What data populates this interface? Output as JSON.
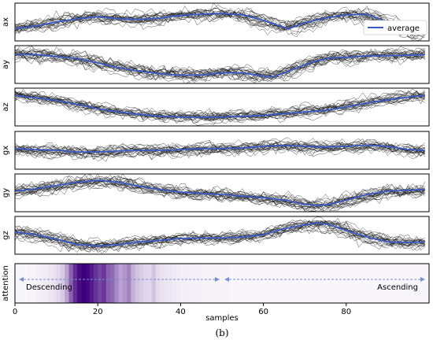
{
  "chart_data": {
    "type": "line",
    "panels": [
      {
        "ylabel": "ax",
        "average": [
          [
            0,
            0.3
          ],
          [
            5,
            0.38
          ],
          [
            10,
            0.5
          ],
          [
            15,
            0.6
          ],
          [
            20,
            0.66
          ],
          [
            25,
            0.6
          ],
          [
            30,
            0.58
          ],
          [
            35,
            0.62
          ],
          [
            40,
            0.7
          ],
          [
            45,
            0.74
          ],
          [
            50,
            0.76
          ],
          [
            55,
            0.72
          ],
          [
            60,
            0.55
          ],
          [
            63,
            0.42
          ],
          [
            66,
            0.3
          ],
          [
            70,
            0.48
          ],
          [
            75,
            0.62
          ],
          [
            80,
            0.72
          ],
          [
            85,
            0.73
          ],
          [
            88,
            0.6
          ],
          [
            92,
            0.35
          ],
          [
            96,
            0.2
          ],
          [
            99,
            0.18
          ]
        ]
      },
      {
        "ylabel": "ay",
        "average": [
          [
            0,
            0.8
          ],
          [
            5,
            0.8
          ],
          [
            10,
            0.74
          ],
          [
            15,
            0.68
          ],
          [
            20,
            0.55
          ],
          [
            25,
            0.4
          ],
          [
            30,
            0.3
          ],
          [
            35,
            0.22
          ],
          [
            40,
            0.18
          ],
          [
            45,
            0.18
          ],
          [
            50,
            0.25
          ],
          [
            55,
            0.25
          ],
          [
            60,
            0.15
          ],
          [
            62,
            0.12
          ],
          [
            64,
            0.2
          ],
          [
            68,
            0.4
          ],
          [
            72,
            0.58
          ],
          [
            76,
            0.7
          ],
          [
            80,
            0.72
          ],
          [
            85,
            0.76
          ],
          [
            90,
            0.77
          ],
          [
            95,
            0.78
          ],
          [
            99,
            0.8
          ]
        ]
      },
      {
        "ylabel": "az",
        "average": [
          [
            0,
            0.85
          ],
          [
            5,
            0.78
          ],
          [
            10,
            0.7
          ],
          [
            15,
            0.58
          ],
          [
            20,
            0.45
          ],
          [
            25,
            0.35
          ],
          [
            30,
            0.28
          ],
          [
            35,
            0.22
          ],
          [
            40,
            0.2
          ],
          [
            45,
            0.19
          ],
          [
            50,
            0.2
          ],
          [
            55,
            0.22
          ],
          [
            60,
            0.25
          ],
          [
            65,
            0.3
          ],
          [
            70,
            0.35
          ],
          [
            75,
            0.4
          ],
          [
            80,
            0.5
          ],
          [
            85,
            0.62
          ],
          [
            90,
            0.72
          ],
          [
            95,
            0.8
          ],
          [
            99,
            0.85
          ]
        ]
      },
      {
        "ylabel": "gx",
        "average": [
          [
            0,
            0.55
          ],
          [
            5,
            0.52
          ],
          [
            10,
            0.5
          ],
          [
            15,
            0.45
          ],
          [
            20,
            0.45
          ],
          [
            25,
            0.48
          ],
          [
            30,
            0.5
          ],
          [
            35,
            0.5
          ],
          [
            40,
            0.52
          ],
          [
            45,
            0.55
          ],
          [
            50,
            0.55
          ],
          [
            55,
            0.57
          ],
          [
            60,
            0.62
          ],
          [
            65,
            0.65
          ],
          [
            70,
            0.62
          ],
          [
            75,
            0.6
          ],
          [
            80,
            0.62
          ],
          [
            85,
            0.66
          ],
          [
            90,
            0.62
          ],
          [
            95,
            0.52
          ],
          [
            99,
            0.5
          ]
        ]
      },
      {
        "ylabel": "gy",
        "average": [
          [
            0,
            0.55
          ],
          [
            5,
            0.62
          ],
          [
            10,
            0.72
          ],
          [
            15,
            0.82
          ],
          [
            20,
            0.88
          ],
          [
            25,
            0.82
          ],
          [
            30,
            0.7
          ],
          [
            35,
            0.6
          ],
          [
            40,
            0.52
          ],
          [
            45,
            0.48
          ],
          [
            50,
            0.45
          ],
          [
            55,
            0.4
          ],
          [
            60,
            0.35
          ],
          [
            65,
            0.28
          ],
          [
            70,
            0.15
          ],
          [
            73,
            0.12
          ],
          [
            76,
            0.15
          ],
          [
            80,
            0.28
          ],
          [
            85,
            0.45
          ],
          [
            90,
            0.55
          ],
          [
            95,
            0.58
          ],
          [
            99,
            0.6
          ]
        ]
      },
      {
        "ylabel": "gz",
        "average": [
          [
            0,
            0.6
          ],
          [
            5,
            0.52
          ],
          [
            10,
            0.38
          ],
          [
            15,
            0.22
          ],
          [
            20,
            0.18
          ],
          [
            25,
            0.22
          ],
          [
            30,
            0.3
          ],
          [
            35,
            0.35
          ],
          [
            40,
            0.4
          ],
          [
            45,
            0.42
          ],
          [
            50,
            0.42
          ],
          [
            55,
            0.45
          ],
          [
            60,
            0.52
          ],
          [
            65,
            0.7
          ],
          [
            70,
            0.82
          ],
          [
            73,
            0.88
          ],
          [
            76,
            0.82
          ],
          [
            80,
            0.65
          ],
          [
            85,
            0.45
          ],
          [
            90,
            0.3
          ],
          [
            95,
            0.28
          ],
          [
            99,
            0.3
          ]
        ]
      }
    ],
    "legend": {
      "label": "average",
      "color": "#3a5bc7",
      "placement": "top-right"
    },
    "attention": {
      "ylabel": "attention",
      "colormap": "purples",
      "values": [
        0.02,
        0.02,
        0.02,
        0.03,
        0.03,
        0.04,
        0.05,
        0.06,
        0.08,
        0.1,
        0.14,
        0.2,
        0.35,
        0.6,
        0.82,
        0.95,
        1.0,
        0.98,
        0.9,
        0.8,
        0.72,
        0.78,
        0.62,
        0.58,
        0.45,
        0.35,
        0.4,
        0.48,
        0.3,
        0.22,
        0.18,
        0.15,
        0.14,
        0.22,
        0.12,
        0.1,
        0.09,
        0.08,
        0.07,
        0.06,
        0.05,
        0.05,
        0.04,
        0.04,
        0.04,
        0.03,
        0.03,
        0.03,
        0.03,
        0.03,
        0.03,
        0.03,
        0.02,
        0.02,
        0.02,
        0.02,
        0.02,
        0.02,
        0.02,
        0.02,
        0.02,
        0.02,
        0.02,
        0.02,
        0.02,
        0.02,
        0.02,
        0.02,
        0.02,
        0.02,
        0.02,
        0.02,
        0.02,
        0.02,
        0.02,
        0.02,
        0.02,
        0.02,
        0.02,
        0.02,
        0.02,
        0.02,
        0.02,
        0.02,
        0.02,
        0.02,
        0.02,
        0.02,
        0.02,
        0.02,
        0.02,
        0.02,
        0.02,
        0.02,
        0.02,
        0.02,
        0.02,
        0.02,
        0.02,
        0.02
      ],
      "annotations": [
        {
          "text": "Descending",
          "x_start": 0,
          "x_end": 50
        },
        {
          "text": "Ascending",
          "x_start": 50,
          "x_end": 100
        }
      ]
    },
    "xlabel": "samples",
    "xlim": [
      0,
      100
    ],
    "xticks": [
      "0",
      "20",
      "40",
      "60",
      "80"
    ],
    "xtick_values": [
      0,
      20,
      40,
      60,
      80
    ],
    "caption": "(b)",
    "colors": {
      "traces": "#1a1a1a",
      "average": "#3a5bc7",
      "arrow": "#7b8fd0"
    }
  }
}
